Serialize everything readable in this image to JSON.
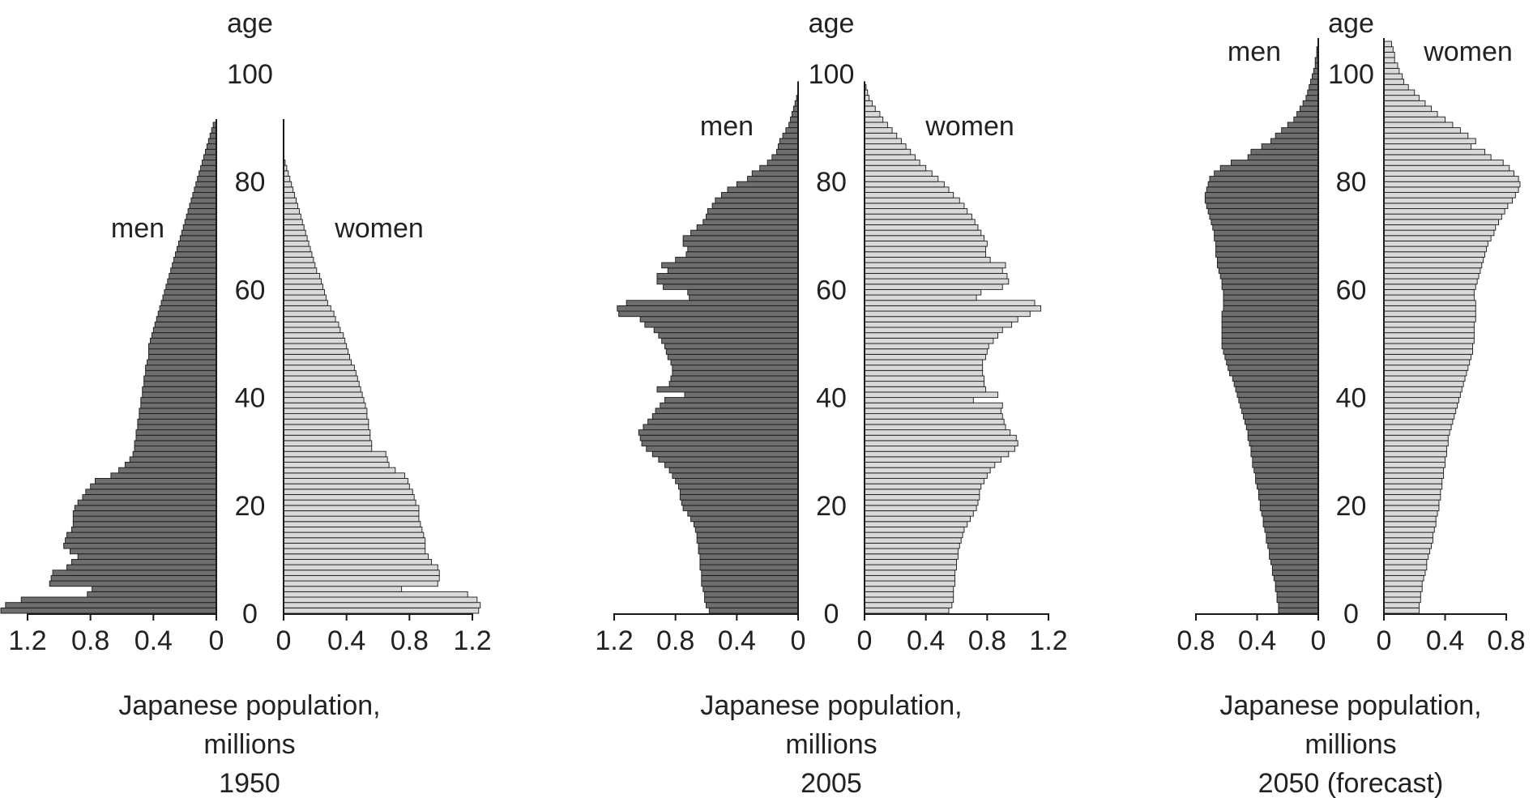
{
  "chart_data": [
    {
      "type": "bar",
      "subtype": "population-pyramid",
      "title": "Japanese population, millions",
      "subtitle_lines": [
        "Japanese population,",
        "millions"
      ],
      "year_label": "1950",
      "age_axis_label": "age",
      "age_ticks": [
        "0",
        "20",
        "40",
        "60",
        "80",
        "100"
      ],
      "x_ticks_men": [
        "1.2",
        "0.8",
        "0.4",
        "0"
      ],
      "x_ticks_women": [
        "0",
        "0.4",
        "0.8",
        "1.2"
      ],
      "xlim": [
        0,
        1.2
      ],
      "age_range": [
        0,
        100
      ],
      "men_label": "men",
      "women_label": "women",
      "men_color": "#6e6e6e",
      "women_color": "#d9d9d9",
      "series": [
        {
          "name": "men",
          "values": [
            1.37,
            1.34,
            1.24,
            0.82,
            0.79,
            1.06,
            1.05,
            1.04,
            0.95,
            0.92,
            0.88,
            0.93,
            0.97,
            0.96,
            0.95,
            0.92,
            0.91,
            0.91,
            0.91,
            0.9,
            0.88,
            0.85,
            0.83,
            0.8,
            0.77,
            0.67,
            0.62,
            0.58,
            0.55,
            0.53,
            0.52,
            0.52,
            0.51,
            0.51,
            0.5,
            0.5,
            0.49,
            0.49,
            0.48,
            0.48,
            0.47,
            0.47,
            0.46,
            0.46,
            0.45,
            0.45,
            0.44,
            0.43,
            0.43,
            0.43,
            0.42,
            0.41,
            0.4,
            0.39,
            0.38,
            0.37,
            0.36,
            0.35,
            0.34,
            0.33,
            0.32,
            0.31,
            0.3,
            0.29,
            0.28,
            0.27,
            0.26,
            0.25,
            0.24,
            0.23,
            0.22,
            0.21,
            0.2,
            0.19,
            0.18,
            0.17,
            0.16,
            0.15,
            0.14,
            0.13,
            0.12,
            0.11,
            0.1,
            0.09,
            0.08,
            0.07,
            0.06,
            0.05,
            0.04,
            0.03,
            0.02
          ]
        },
        {
          "name": "women",
          "values": [
            1.24,
            1.25,
            1.23,
            1.17,
            0.75,
            0.98,
            0.99,
            0.99,
            0.98,
            0.94,
            0.92,
            0.9,
            0.9,
            0.9,
            0.89,
            0.88,
            0.87,
            0.86,
            0.86,
            0.86,
            0.84,
            0.83,
            0.82,
            0.8,
            0.79,
            0.77,
            0.71,
            0.67,
            0.66,
            0.65,
            0.56,
            0.56,
            0.55,
            0.55,
            0.54,
            0.54,
            0.53,
            0.53,
            0.52,
            0.51,
            0.5,
            0.49,
            0.48,
            0.47,
            0.46,
            0.45,
            0.43,
            0.42,
            0.41,
            0.4,
            0.39,
            0.38,
            0.36,
            0.35,
            0.33,
            0.32,
            0.3,
            0.28,
            0.27,
            0.26,
            0.25,
            0.24,
            0.23,
            0.21,
            0.2,
            0.19,
            0.18,
            0.17,
            0.16,
            0.15,
            0.14,
            0.13,
            0.12,
            0.11,
            0.1,
            0.09,
            0.08,
            0.07,
            0.06,
            0.05,
            0.04,
            0.03,
            0.02,
            0.01
          ]
        }
      ]
    },
    {
      "type": "bar",
      "subtype": "population-pyramid",
      "title": "Japanese population, millions",
      "subtitle_lines": [
        "Japanese population,",
        "millions"
      ],
      "year_label": "2005",
      "age_axis_label": "age",
      "age_ticks": [
        "0",
        "20",
        "40",
        "60",
        "80",
        "100"
      ],
      "x_ticks_men": [
        "1.2",
        "0.8",
        "0.4",
        "0"
      ],
      "x_ticks_women": [
        "0",
        "0.4",
        "0.8",
        "1.2"
      ],
      "xlim": [
        0,
        1.2
      ],
      "age_range": [
        0,
        100
      ],
      "men_label": "men",
      "women_label": "women",
      "men_color": "#6e6e6e",
      "women_color": "#d9d9d9",
      "series": [
        {
          "name": "men",
          "values": [
            0.58,
            0.6,
            0.61,
            0.61,
            0.62,
            0.63,
            0.63,
            0.63,
            0.64,
            0.64,
            0.64,
            0.65,
            0.65,
            0.66,
            0.66,
            0.67,
            0.68,
            0.7,
            0.72,
            0.75,
            0.76,
            0.77,
            0.77,
            0.78,
            0.8,
            0.82,
            0.84,
            0.87,
            0.91,
            0.95,
            0.99,
            1.02,
            1.03,
            1.04,
            1.01,
            0.98,
            0.95,
            0.93,
            0.9,
            0.87,
            0.74,
            0.92,
            0.84,
            0.83,
            0.82,
            0.82,
            0.83,
            0.85,
            0.86,
            0.87,
            0.89,
            0.91,
            0.94,
            1.0,
            1.03,
            1.17,
            1.18,
            1.12,
            0.71,
            0.72,
            0.88,
            0.92,
            0.92,
            0.85,
            0.89,
            0.8,
            0.73,
            0.72,
            0.75,
            0.75,
            0.7,
            0.66,
            0.62,
            0.6,
            0.59,
            0.56,
            0.54,
            0.5,
            0.46,
            0.4,
            0.33,
            0.3,
            0.25,
            0.2,
            0.17,
            0.14,
            0.13,
            0.12,
            0.1,
            0.08,
            0.06,
            0.05,
            0.04,
            0.03,
            0.02,
            0.01
          ]
        },
        {
          "name": "women",
          "values": [
            0.55,
            0.57,
            0.58,
            0.58,
            0.58,
            0.59,
            0.59,
            0.59,
            0.6,
            0.6,
            0.61,
            0.61,
            0.62,
            0.63,
            0.64,
            0.65,
            0.67,
            0.69,
            0.71,
            0.73,
            0.74,
            0.75,
            0.75,
            0.76,
            0.78,
            0.8,
            0.82,
            0.85,
            0.89,
            0.94,
            0.98,
            1.0,
            0.99,
            0.95,
            0.92,
            0.91,
            0.9,
            0.89,
            0.9,
            0.71,
            0.87,
            0.79,
            0.78,
            0.78,
            0.77,
            0.77,
            0.77,
            0.79,
            0.8,
            0.81,
            0.84,
            0.87,
            0.9,
            0.96,
            1.0,
            1.08,
            1.15,
            1.11,
            0.73,
            0.76,
            0.9,
            0.94,
            0.93,
            0.9,
            0.92,
            0.82,
            0.79,
            0.79,
            0.8,
            0.78,
            0.76,
            0.74,
            0.72,
            0.7,
            0.67,
            0.65,
            0.62,
            0.58,
            0.55,
            0.52,
            0.48,
            0.44,
            0.4,
            0.36,
            0.33,
            0.3,
            0.27,
            0.24,
            0.21,
            0.18,
            0.15,
            0.12,
            0.1,
            0.07,
            0.05,
            0.03,
            0.02,
            0.01
          ]
        }
      ]
    },
    {
      "type": "bar",
      "subtype": "population-pyramid",
      "title": "Japanese population, millions",
      "subtitle_lines": [
        "Japanese population,",
        "millions"
      ],
      "year_label": "2050 (forecast)",
      "age_axis_label": "age",
      "age_ticks": [
        "0",
        "20",
        "40",
        "60",
        "80",
        "100"
      ],
      "x_ticks_men": [
        "0.8",
        "0.4",
        "0"
      ],
      "x_ticks_women": [
        "0",
        "0.4",
        "0.8"
      ],
      "xlim": [
        0,
        0.8
      ],
      "age_range": [
        0,
        100
      ],
      "men_label": "men",
      "women_label": "women",
      "men_color": "#6e6e6e",
      "women_color": "#d9d9d9",
      "series": [
        {
          "name": "men",
          "values": [
            0.26,
            0.26,
            0.27,
            0.27,
            0.28,
            0.28,
            0.29,
            0.3,
            0.3,
            0.31,
            0.32,
            0.32,
            0.33,
            0.34,
            0.34,
            0.35,
            0.36,
            0.36,
            0.37,
            0.38,
            0.38,
            0.39,
            0.39,
            0.4,
            0.41,
            0.41,
            0.42,
            0.43,
            0.43,
            0.44,
            0.44,
            0.45,
            0.46,
            0.46,
            0.47,
            0.48,
            0.49,
            0.5,
            0.51,
            0.52,
            0.53,
            0.54,
            0.55,
            0.56,
            0.58,
            0.59,
            0.6,
            0.61,
            0.62,
            0.63,
            0.63,
            0.63,
            0.63,
            0.63,
            0.63,
            0.63,
            0.62,
            0.62,
            0.62,
            0.62,
            0.63,
            0.63,
            0.64,
            0.65,
            0.66,
            0.66,
            0.67,
            0.67,
            0.67,
            0.68,
            0.68,
            0.69,
            0.7,
            0.71,
            0.72,
            0.73,
            0.74,
            0.74,
            0.73,
            0.72,
            0.71,
            0.68,
            0.64,
            0.57,
            0.46,
            0.44,
            0.37,
            0.31,
            0.28,
            0.24,
            0.2,
            0.16,
            0.14,
            0.12,
            0.1,
            0.08,
            0.07,
            0.06,
            0.05,
            0.04,
            0.03,
            0.02,
            0.02,
            0.01,
            0.01
          ]
        },
        {
          "name": "women",
          "values": [
            0.23,
            0.23,
            0.24,
            0.24,
            0.25,
            0.25,
            0.26,
            0.27,
            0.28,
            0.28,
            0.29,
            0.3,
            0.31,
            0.32,
            0.32,
            0.33,
            0.34,
            0.34,
            0.35,
            0.36,
            0.36,
            0.37,
            0.37,
            0.38,
            0.38,
            0.39,
            0.39,
            0.4,
            0.4,
            0.41,
            0.41,
            0.42,
            0.42,
            0.43,
            0.44,
            0.45,
            0.46,
            0.47,
            0.48,
            0.49,
            0.5,
            0.51,
            0.52,
            0.53,
            0.54,
            0.55,
            0.56,
            0.57,
            0.58,
            0.58,
            0.59,
            0.59,
            0.59,
            0.59,
            0.6,
            0.6,
            0.6,
            0.6,
            0.59,
            0.59,
            0.6,
            0.61,
            0.62,
            0.63,
            0.64,
            0.65,
            0.66,
            0.67,
            0.68,
            0.7,
            0.72,
            0.73,
            0.75,
            0.77,
            0.79,
            0.81,
            0.84,
            0.86,
            0.88,
            0.89,
            0.88,
            0.85,
            0.82,
            0.78,
            0.7,
            0.66,
            0.57,
            0.6,
            0.55,
            0.5,
            0.45,
            0.4,
            0.35,
            0.31,
            0.27,
            0.23,
            0.2,
            0.16,
            0.13,
            0.12,
            0.1,
            0.09,
            0.07,
            0.07,
            0.06,
            0.05
          ]
        }
      ]
    }
  ]
}
